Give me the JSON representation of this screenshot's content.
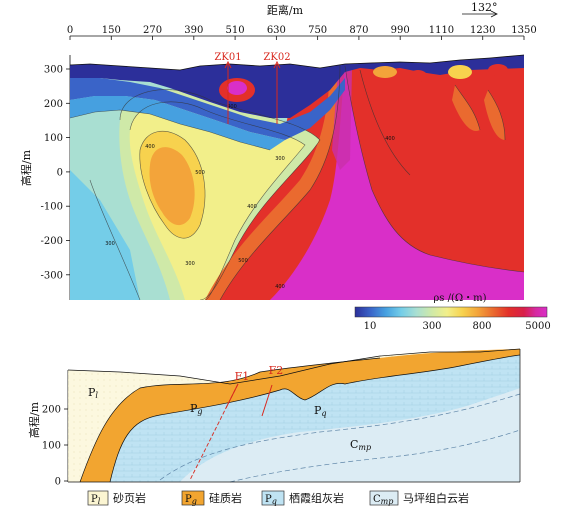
{
  "top_section": {
    "x_axis_title": "距离/m",
    "x_ticks": [
      "0",
      "150",
      "270",
      "390",
      "510",
      "630",
      "750",
      "870",
      "990",
      "1110",
      "1230",
      "1350"
    ],
    "azimuth": "132°",
    "y_axis_title": "高程/m",
    "y_ticks": [
      "300",
      "200",
      "100",
      "0",
      "-100",
      "-200",
      "-300"
    ],
    "boreholes": [
      "ZK01",
      "ZK02"
    ],
    "contour_labels": [
      "400",
      "300",
      "500",
      "400",
      "300",
      "400",
      "500",
      "400",
      "300",
      "400"
    ],
    "colorbar_title": "ρs /(Ω・m)",
    "colorbar_ticks": [
      "10",
      "300",
      "800",
      "5000"
    ],
    "colorbar_colors": [
      "#2c2f9a",
      "#3a64c8",
      "#46a0e0",
      "#74cde8",
      "#a9dfd2",
      "#cfe9a8",
      "#f2ef8a",
      "#f7d24e",
      "#f3a43a",
      "#ea6a2f",
      "#e3302a",
      "#d81f4a",
      "#d62aa0",
      "#d92fc8"
    ]
  },
  "bottom_section": {
    "y_axis_title": "高程/m",
    "y_ticks": [
      "200",
      "100",
      "0"
    ],
    "fault_labels": [
      "F1",
      "F2"
    ],
    "unit_labels": {
      "pl": "Pl",
      "pg": "Pg",
      "pq": "Pq",
      "cmp": "Cmp"
    },
    "layer_colors": {
      "pl": "#fbf5d2",
      "pg": "#f2a530",
      "pq": "#bfe3f3",
      "cmp": "#dcecf4"
    }
  },
  "legend": [
    {
      "code": "Pl",
      "label": "砂页岩",
      "color": "#fbf5d2"
    },
    {
      "code": "Pg",
      "label": "硅质岩",
      "color": "#f2a530"
    },
    {
      "code": "Pq",
      "label": "栖霞组灰岩",
      "color": "#bfe3f3"
    },
    {
      "code": "Cmp",
      "label": "马坪组白云岩",
      "color": "#dcecf4"
    }
  ]
}
